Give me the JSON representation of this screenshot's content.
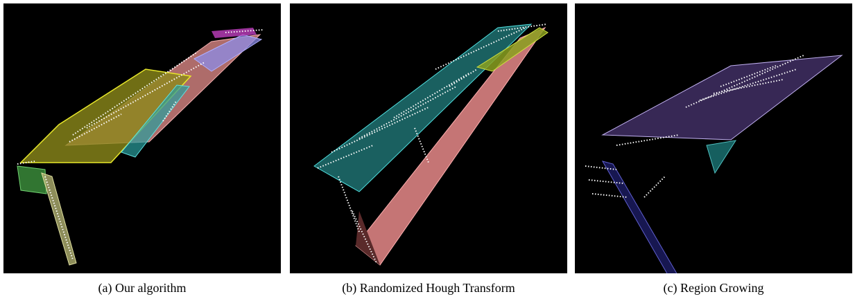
{
  "panels": [
    {
      "caption": "(a) Our algorithm"
    },
    {
      "caption": "(b) Randomized Hough Transform"
    },
    {
      "caption": "(c) Region Growing"
    }
  ]
}
